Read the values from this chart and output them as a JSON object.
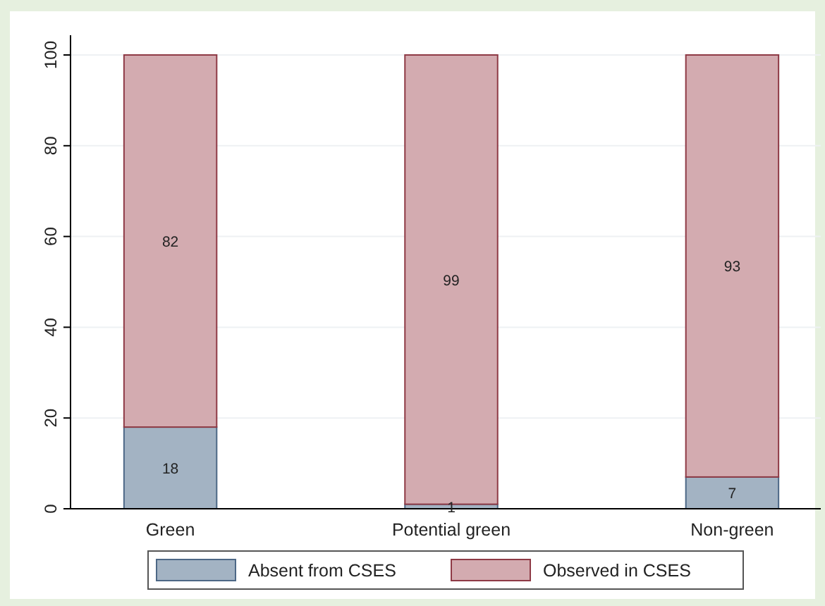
{
  "chart_data": {
    "type": "bar",
    "stacked": true,
    "categories": [
      "Green",
      "Potential green",
      "Non-green"
    ],
    "series": [
      {
        "name": "Absent from CSES",
        "color": "#a3b3c3",
        "values": [
          18,
          1,
          7
        ]
      },
      {
        "name": "Observed in CSES",
        "color": "#d3abb0",
        "values": [
          82,
          99,
          93
        ]
      }
    ],
    "ylim": [
      0,
      100
    ],
    "yticks": [
      0,
      20,
      40,
      60,
      80,
      100
    ],
    "grid": "y",
    "legend": "bottom",
    "data_labels": true
  }
}
